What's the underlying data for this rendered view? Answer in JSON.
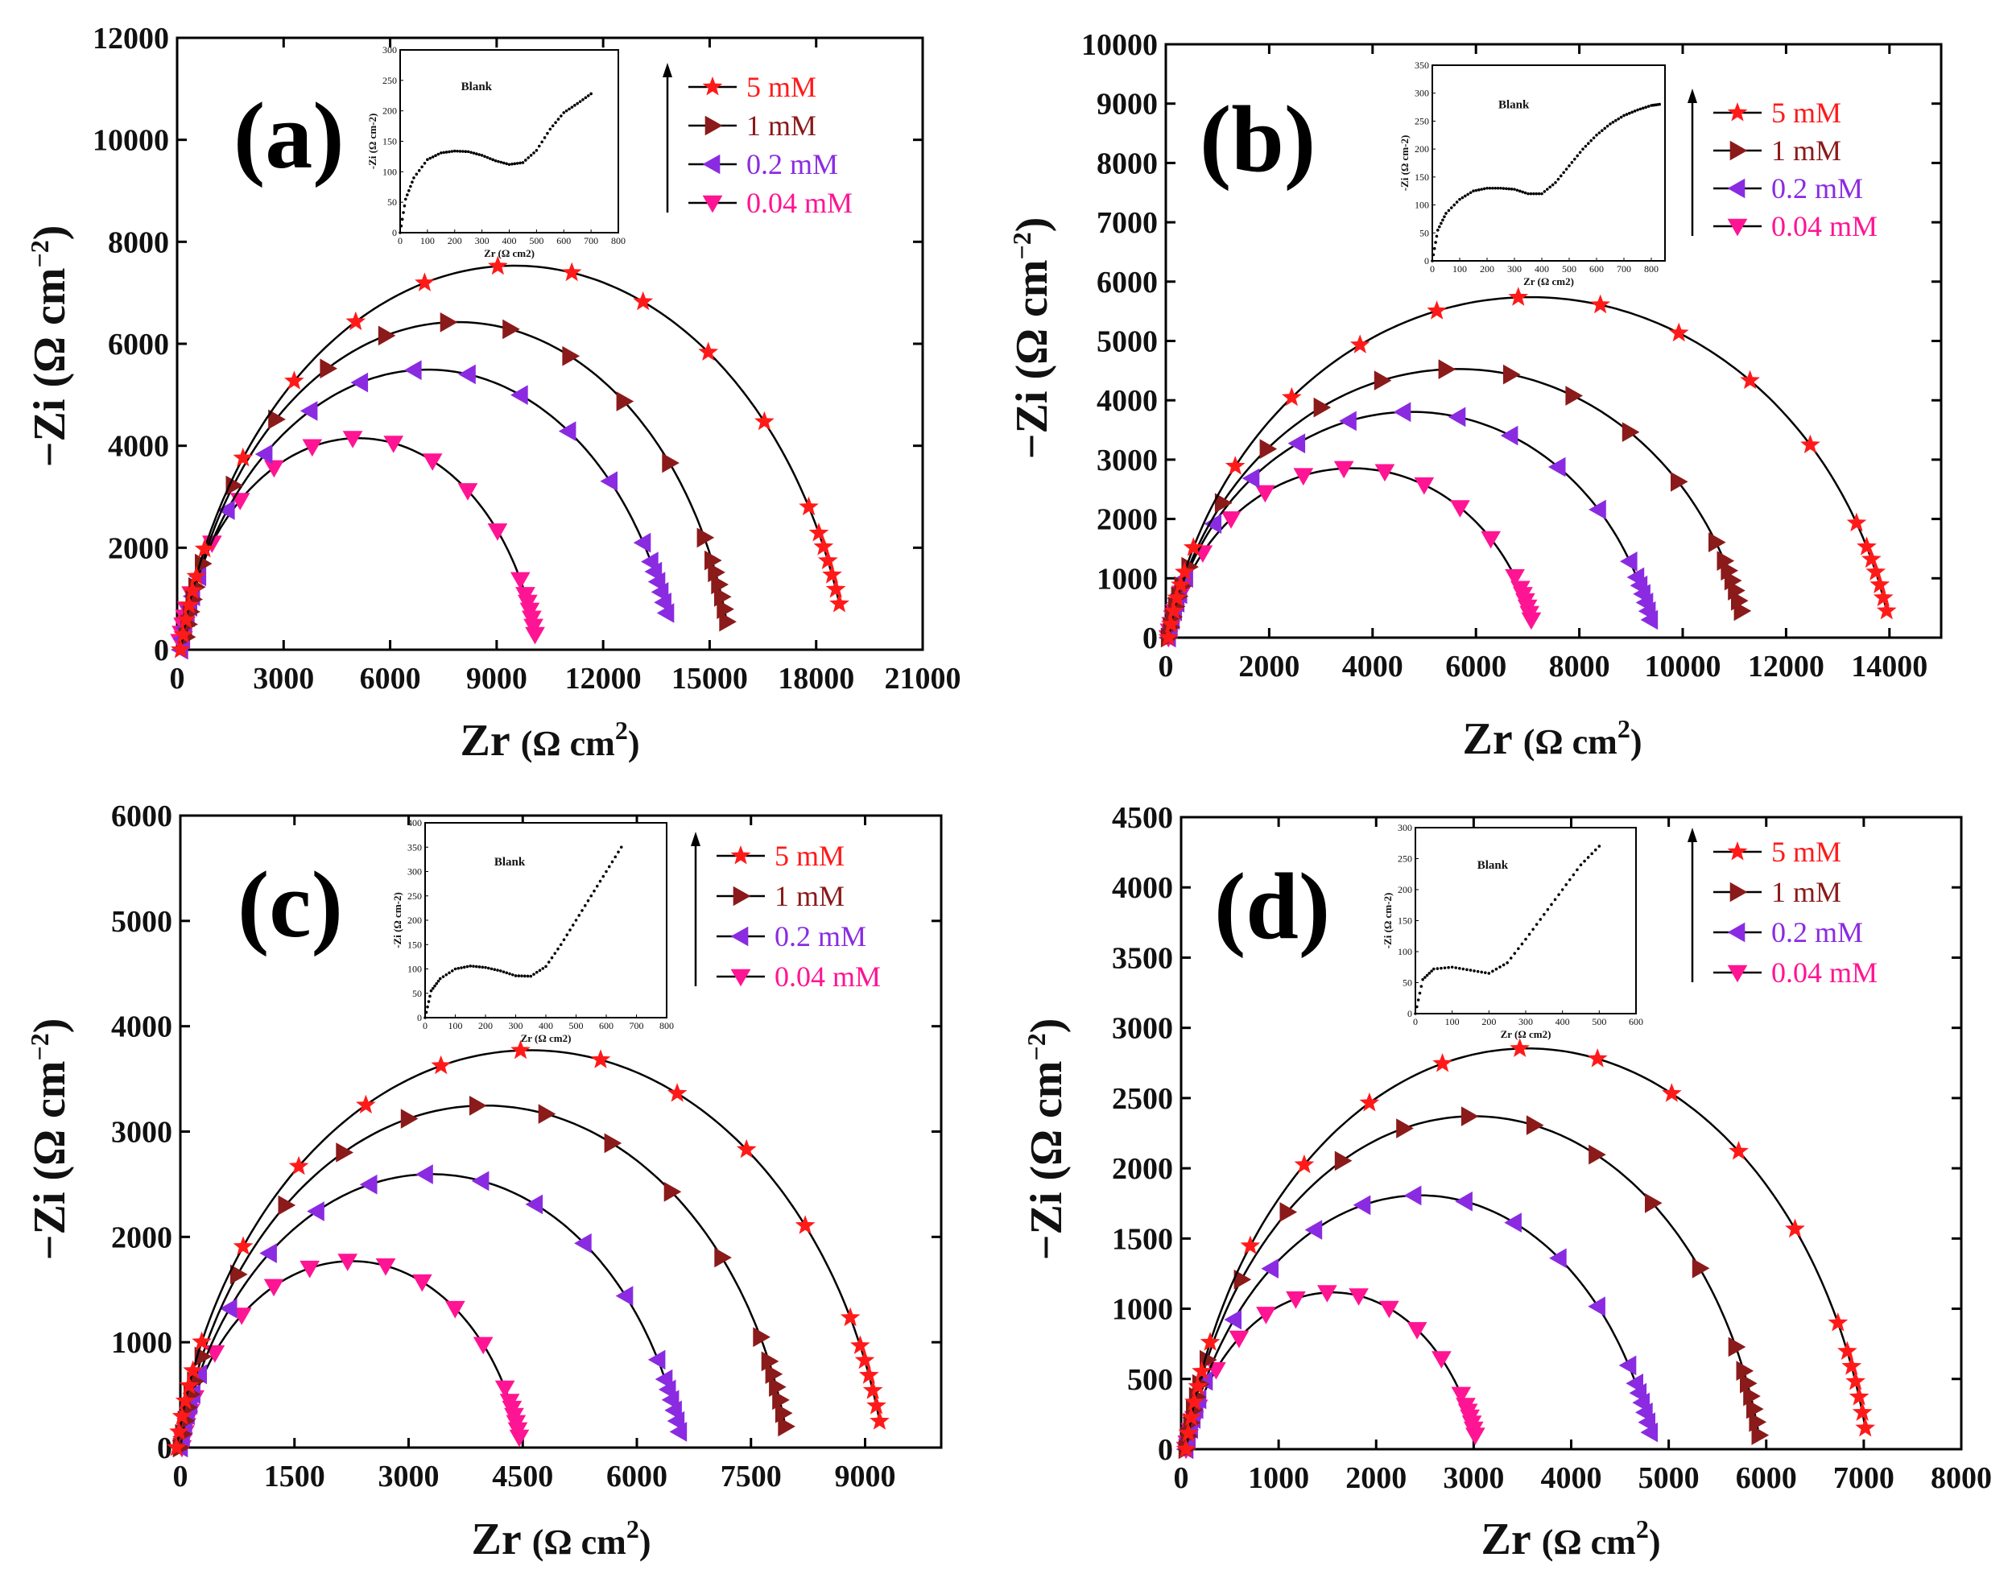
{
  "figure": {
    "legend_labels": [
      "5 mM",
      "1 mM",
      "0.2 mM",
      "0.04 mM"
    ],
    "colors": {
      "5 mM": "#ff1a1a",
      "1 mM": "#8b1a1a",
      "0.2 mM": "#8a2be2",
      "0.04 mM": "#ff1493",
      "fit_line": "#000000"
    },
    "markers": {
      "5 mM": "star",
      "1 mM": "triangle-right",
      "0.2 mM": "triangle-left",
      "0.04 mM": "triangle-down"
    }
  },
  "chart_data": [
    {
      "panel": "(a)",
      "type": "scatter",
      "xlabel": "Zr (Ω cm2)",
      "ylabel": "−Zi (Ω cm−2)",
      "xlim": [
        0,
        21000
      ],
      "ylim": [
        0,
        12000
      ],
      "xticks": [
        0,
        3000,
        6000,
        9000,
        12000,
        15000,
        18000,
        21000
      ],
      "yticks": [
        0,
        2000,
        4000,
        6000,
        8000,
        10000,
        12000
      ],
      "legend": "top-right",
      "series": [
        {
          "name": "5 mM",
          "arc": {
            "center_x": 9500,
            "center_y": 0,
            "radius": 9400,
            "depressed_by": 2100,
            "end_y": 900
          }
        },
        {
          "name": "1 mM",
          "arc": {
            "center_x": 7900,
            "center_y": 0,
            "radius": 7700,
            "depressed_by": 1400,
            "end_y": 550
          }
        },
        {
          "name": "0.2 mM",
          "arc": {
            "center_x": 7050,
            "center_y": 0,
            "radius": 6950,
            "depressed_by": 1650,
            "end_y": 720
          }
        },
        {
          "name": "0.04 mM",
          "arc": {
            "center_x": 5100,
            "center_y": 0,
            "radius": 5050,
            "depressed_by": 1000,
            "end_y": 300
          }
        }
      ],
      "inset": {
        "title": "Blank",
        "xlabel": "Zr (Ω cm2)",
        "ylabel": "-Zi (Ω cm-2)",
        "xlim": [
          0,
          800
        ],
        "ylim": [
          0,
          300
        ],
        "xticks": [
          0,
          100,
          200,
          300,
          400,
          500,
          600,
          700,
          800
        ],
        "yticks": [
          0,
          50,
          100,
          150,
          200,
          250,
          300
        ],
        "x": [
          0,
          20,
          50,
          100,
          150,
          200,
          250,
          300,
          350,
          400,
          450,
          500,
          550,
          600,
          650,
          700
        ],
        "y": [
          0,
          55,
          90,
          120,
          131,
          134,
          133,
          127,
          118,
          112,
          115,
          135,
          170,
          197,
          212,
          228
        ]
      }
    },
    {
      "panel": "(b)",
      "type": "scatter",
      "xlabel": "Zr (Ω cm2)",
      "ylabel": "−Zi (Ω cm−2)",
      "xlim": [
        0,
        15000
      ],
      "ylim": [
        0,
        10000
      ],
      "xticks": [
        0,
        2000,
        4000,
        6000,
        8000,
        10000,
        12000,
        14000
      ],
      "yticks": [
        0,
        1000,
        2000,
        3000,
        4000,
        5000,
        6000,
        7000,
        8000,
        9000,
        10000
      ],
      "legend": "top-right",
      "series": [
        {
          "name": "5 mM",
          "arc": {
            "center_x": 7050,
            "center_y": 0,
            "radius": 7000,
            "depressed_by": 1400,
            "end_y": 450
          }
        },
        {
          "name": "1 mM",
          "arc": {
            "center_x": 5650,
            "center_y": 0,
            "radius": 5600,
            "depressed_by": 1200,
            "end_y": 450
          }
        },
        {
          "name": "0.2 mM",
          "arc": {
            "center_x": 4750,
            "center_y": 0,
            "radius": 4700,
            "depressed_by": 1000,
            "end_y": 300
          }
        },
        {
          "name": "0.04 mM",
          "arc": {
            "center_x": 3600,
            "center_y": 0,
            "radius": 3550,
            "depressed_by": 780,
            "end_y": 300
          }
        }
      ],
      "inset": {
        "title": "Blank",
        "xlabel": "Zr (Ω cm2)",
        "ylabel": "-Zi (Ω cm-2)",
        "xlim": [
          0,
          850
        ],
        "ylim": [
          0,
          350
        ],
        "xticks": [
          0,
          100,
          200,
          300,
          400,
          500,
          600,
          700,
          800
        ],
        "yticks": [
          0,
          50,
          100,
          150,
          200,
          250,
          300,
          350
        ],
        "x": [
          0,
          20,
          50,
          100,
          150,
          200,
          250,
          300,
          350,
          400,
          450,
          500,
          550,
          600,
          650,
          700,
          750,
          800,
          830
        ],
        "y": [
          0,
          55,
          85,
          110,
          125,
          130,
          130,
          128,
          120,
          120,
          140,
          170,
          200,
          225,
          245,
          260,
          270,
          278,
          280
        ]
      }
    },
    {
      "panel": "(c)",
      "type": "scatter",
      "xlabel": "Zr (Ω cm2)",
      "ylabel": "−Zi (Ω cm−2)",
      "xlim": [
        0,
        10000
      ],
      "ylim": [
        0,
        6000
      ],
      "xticks": [
        0,
        1500,
        3000,
        4500,
        6000,
        7500,
        9000
      ],
      "yticks": [
        0,
        1000,
        2000,
        3000,
        4000,
        5000,
        6000
      ],
      "legend": "top-right",
      "series": [
        {
          "name": "5 mM",
          "arc": {
            "center_x": 4600,
            "center_y": 0,
            "radius": 4650,
            "depressed_by": 980,
            "end_y": 250
          }
        },
        {
          "name": "1 mM",
          "arc": {
            "center_x": 4000,
            "center_y": 0,
            "radius": 4000,
            "depressed_by": 840,
            "end_y": 200
          }
        },
        {
          "name": "0.2 mM",
          "arc": {
            "center_x": 3300,
            "center_y": 0,
            "radius": 3300,
            "depressed_by": 800,
            "end_y": 150
          }
        },
        {
          "name": "0.04 mM",
          "arc": {
            "center_x": 2250,
            "center_y": 0,
            "radius": 2230,
            "depressed_by": 520,
            "end_y": 100
          }
        }
      ],
      "inset": {
        "title": "Blank",
        "xlabel": "Zr (Ω cm2)",
        "ylabel": "-Zi (Ω cm-2)",
        "xlim": [
          0,
          800
        ],
        "ylim": [
          0,
          400
        ],
        "xticks": [
          0,
          100,
          200,
          300,
          400,
          500,
          600,
          700,
          800
        ],
        "yticks": [
          0,
          50,
          100,
          150,
          200,
          250,
          300,
          350,
          400
        ],
        "x": [
          0,
          20,
          50,
          100,
          150,
          200,
          250,
          300,
          350,
          400,
          450,
          500,
          550,
          600,
          650
        ],
        "y": [
          0,
          55,
          80,
          100,
          106,
          103,
          96,
          86,
          85,
          105,
          150,
          200,
          250,
          300,
          350
        ]
      }
    },
    {
      "panel": "(d)",
      "type": "scatter",
      "xlabel": "Zr (Ω cm2)",
      "ylabel": "−Zi (Ω cm−2)",
      "xlim": [
        0,
        8000
      ],
      "ylim": [
        0,
        4500
      ],
      "xticks": [
        0,
        1000,
        2000,
        3000,
        4000,
        5000,
        6000,
        7000,
        8000
      ],
      "yticks": [
        0,
        500,
        1000,
        1500,
        2000,
        2500,
        3000,
        3500,
        4000,
        4500
      ],
      "legend": "top-right",
      "series": [
        {
          "name": "5 mM",
          "arc": {
            "center_x": 3550,
            "center_y": 0,
            "radius": 3500,
            "depressed_by": 720,
            "end_y": 150
          }
        },
        {
          "name": "1 mM",
          "arc": {
            "center_x": 3000,
            "center_y": 0,
            "radius": 2950,
            "depressed_by": 650,
            "end_y": 100
          }
        },
        {
          "name": "0.2 mM",
          "arc": {
            "center_x": 2450,
            "center_y": 0,
            "radius": 2400,
            "depressed_by": 690,
            "end_y": 120
          }
        },
        {
          "name": "0.04 mM",
          "arc": {
            "center_x": 1550,
            "center_y": 0,
            "radius": 1500,
            "depressed_by": 450,
            "end_y": 100
          }
        }
      ],
      "inset": {
        "title": "Blank",
        "xlabel": "Zr (Ω cm2)",
        "ylabel": "-Zi (Ω cm-2)",
        "xlim": [
          0,
          600
        ],
        "ylim": [
          0,
          300
        ],
        "xticks": [
          0,
          100,
          200,
          300,
          400,
          500,
          600
        ],
        "yticks": [
          0,
          50,
          100,
          150,
          200,
          250,
          300
        ],
        "x": [
          0,
          20,
          50,
          100,
          150,
          200,
          250,
          300,
          350,
          400,
          450,
          500
        ],
        "y": [
          0,
          55,
          72,
          75,
          70,
          65,
          82,
          120,
          160,
          200,
          240,
          270
        ]
      }
    }
  ]
}
